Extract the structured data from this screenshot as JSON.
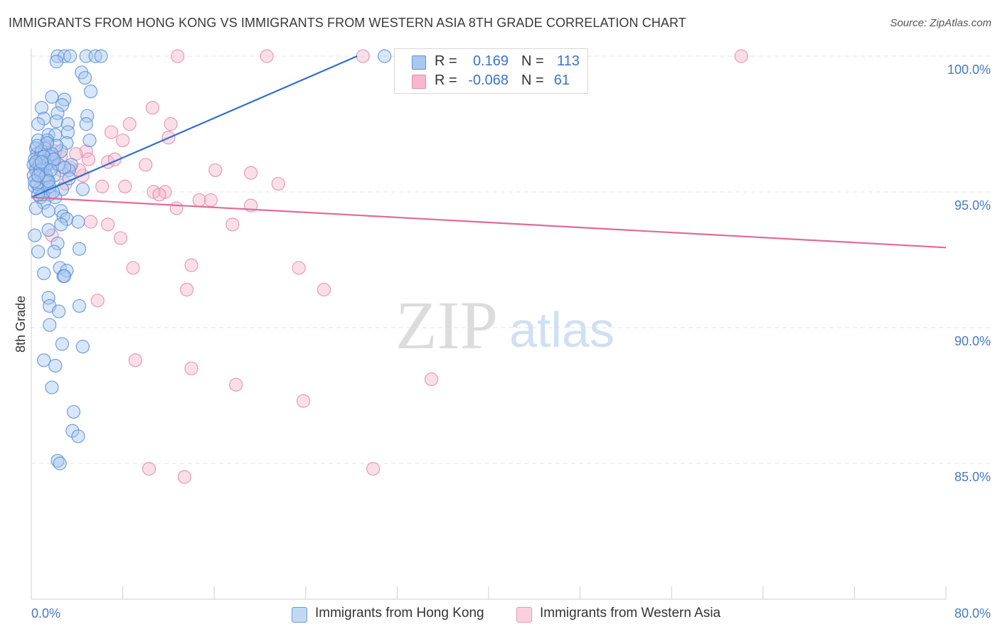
{
  "title": "IMMIGRANTS FROM HONG KONG VS IMMIGRANTS FROM WESTERN ASIA 8TH GRADE CORRELATION CHART",
  "source": "Source: ZipAtlas.com",
  "watermark": {
    "zip": "ZIP",
    "atlas": "atlas"
  },
  "legend": {
    "rows": [
      {
        "r_label": "R =",
        "r_value": "0.169",
        "n_label": "N =",
        "n_value": "113"
      },
      {
        "r_label": "R =",
        "r_value": "-0.068",
        "n_label": "N =",
        "n_value": "61"
      }
    ]
  },
  "bottom_legend": {
    "hong_kong": "Immigrants from Hong Kong",
    "western_asia": "Immigrants from Western Asia"
  },
  "colors": {
    "blue_fill": "#a9c8f0",
    "blue_stroke": "#5b8fd6",
    "blue_line": "#2f6fd0",
    "pink_fill": "#f6b9cc",
    "pink_stroke": "#e58aa8",
    "pink_line": "#e06b96",
    "axis_label": "#4a78c2"
  },
  "chart_data": {
    "type": "scatter",
    "title": "IMMIGRANTS FROM HONG KONG VS IMMIGRANTS FROM WESTERN ASIA 8TH GRADE CORRELATION CHART",
    "xlabel": "",
    "ylabel": "8th Grade",
    "xlim": [
      0,
      80
    ],
    "ylim": [
      80.5,
      100.5
    ],
    "x_tick_labels": [
      "0.0%",
      "80.0%"
    ],
    "y_ticks": [
      85,
      90,
      95,
      100
    ],
    "y_tick_labels": [
      "85.0%",
      "90.0%",
      "95.0%",
      "100.0%"
    ],
    "grid": "horizontal dashed",
    "legend_position": "top-center",
    "series": [
      {
        "name": "Immigrants from Hong Kong",
        "color": "blue",
        "trend": {
          "x": [
            0.0,
            28.5
          ],
          "y": [
            94.8,
            100.0
          ]
        },
        "points": [
          [
            2.3,
            100
          ],
          [
            2.9,
            100
          ],
          [
            3.4,
            100
          ],
          [
            4.8,
            100
          ],
          [
            5.6,
            100
          ],
          [
            6.1,
            100
          ],
          [
            2.2,
            99.8
          ],
          [
            4.4,
            99.4
          ],
          [
            4.7,
            99.2
          ],
          [
            5.2,
            98.7
          ],
          [
            1.8,
            98.5
          ],
          [
            2.9,
            98.4
          ],
          [
            0.9,
            98.1
          ],
          [
            2.7,
            98.2
          ],
          [
            2.3,
            97.9
          ],
          [
            4.9,
            97.8
          ],
          [
            1.1,
            97.7
          ],
          [
            2.2,
            97.6
          ],
          [
            0.6,
            97.5
          ],
          [
            3.2,
            97.5
          ],
          [
            4.8,
            97.5
          ],
          [
            1.5,
            97.1
          ],
          [
            2.1,
            97.1
          ],
          [
            3.2,
            97.2
          ],
          [
            0.6,
            96.9
          ],
          [
            1.4,
            96.9
          ],
          [
            3.1,
            96.8
          ],
          [
            5.1,
            96.9
          ],
          [
            0.4,
            96.6
          ],
          [
            1.2,
            96.6
          ],
          [
            2.6,
            96.5
          ],
          [
            0.5,
            96.4
          ],
          [
            1.7,
            96.3
          ],
          [
            0.3,
            96.2
          ],
          [
            1.6,
            96.1
          ],
          [
            3.5,
            96.0
          ],
          [
            0.2,
            96.0
          ],
          [
            1.0,
            95.9
          ],
          [
            3.3,
            95.8
          ],
          [
            0.4,
            95.8
          ],
          [
            2.0,
            95.6
          ],
          [
            0.2,
            95.6
          ],
          [
            1.4,
            95.4
          ],
          [
            3.3,
            95.5
          ],
          [
            0.3,
            95.2
          ],
          [
            2.7,
            95.1
          ],
          [
            0.7,
            95.1
          ],
          [
            1.6,
            94.9
          ],
          [
            4.5,
            95.1
          ],
          [
            2.1,
            94.8
          ],
          [
            0.8,
            94.8
          ],
          [
            1.1,
            94.6
          ],
          [
            0.4,
            94.4
          ],
          [
            2.6,
            94.3
          ],
          [
            1.5,
            94.3
          ],
          [
            2.8,
            94.1
          ],
          [
            3.1,
            94.0
          ],
          [
            2.6,
            93.8
          ],
          [
            1.5,
            93.6
          ],
          [
            4.1,
            93.9
          ],
          [
            0.3,
            93.4
          ],
          [
            2.3,
            93.1
          ],
          [
            2.0,
            92.8
          ],
          [
            4.2,
            92.9
          ],
          [
            0.6,
            92.8
          ],
          [
            2.5,
            92.2
          ],
          [
            3.1,
            92.1
          ],
          [
            1.1,
            92.0
          ],
          [
            2.8,
            91.9
          ],
          [
            2.9,
            91.9
          ],
          [
            1.5,
            91.1
          ],
          [
            1.6,
            90.8
          ],
          [
            2.4,
            90.6
          ],
          [
            4.2,
            90.8
          ],
          [
            1.6,
            90.1
          ],
          [
            2.7,
            89.4
          ],
          [
            4.5,
            89.3
          ],
          [
            1.1,
            88.8
          ],
          [
            2.1,
            88.6
          ],
          [
            1.8,
            87.8
          ],
          [
            3.7,
            86.9
          ],
          [
            3.6,
            86.2
          ],
          [
            4.1,
            86.0
          ],
          [
            2.3,
            85.1
          ],
          [
            2.5,
            85.0
          ],
          [
            30.9,
            100
          ],
          [
            1.9,
            96.2
          ],
          [
            0.8,
            95.7
          ],
          [
            1.3,
            96.0
          ],
          [
            0.5,
            95.3
          ],
          [
            1.0,
            94.9
          ],
          [
            2.2,
            96.7
          ],
          [
            1.2,
            95.5
          ],
          [
            0.9,
            96.5
          ],
          [
            1.6,
            95.2
          ],
          [
            2.4,
            96.0
          ],
          [
            0.7,
            96.0
          ],
          [
            1.8,
            96.4
          ],
          [
            0.3,
            95.4
          ],
          [
            1.4,
            96.8
          ],
          [
            2.9,
            95.9
          ],
          [
            0.6,
            94.9
          ],
          [
            1.1,
            96.3
          ],
          [
            0.4,
            96.1
          ],
          [
            1.9,
            95.0
          ],
          [
            0.8,
            95.8
          ],
          [
            2.0,
            96.2
          ],
          [
            1.3,
            95.6
          ],
          [
            0.5,
            96.7
          ],
          [
            1.7,
            95.8
          ],
          [
            0.9,
            96.1
          ],
          [
            1.5,
            95.4
          ],
          [
            0.6,
            95.6
          ]
        ]
      },
      {
        "name": "Immigrants from Western Asia",
        "color": "pink",
        "trend": {
          "x": [
            0.0,
            80.0
          ],
          "y": [
            94.8,
            92.95
          ]
        },
        "points": [
          [
            12.8,
            100
          ],
          [
            20.6,
            100
          ],
          [
            29.0,
            100
          ],
          [
            62.1,
            100
          ],
          [
            10.6,
            98.1
          ],
          [
            8.6,
            97.5
          ],
          [
            12.2,
            97.5
          ],
          [
            7.0,
            97.2
          ],
          [
            12.0,
            97.0
          ],
          [
            8.0,
            96.9
          ],
          [
            4.8,
            96.5
          ],
          [
            3.9,
            96.4
          ],
          [
            2.6,
            96.3
          ],
          [
            5.0,
            96.2
          ],
          [
            6.7,
            96.1
          ],
          [
            7.3,
            96.2
          ],
          [
            10.0,
            96.0
          ],
          [
            3.4,
            95.9
          ],
          [
            16.1,
            95.8
          ],
          [
            19.2,
            95.7
          ],
          [
            4.5,
            95.6
          ],
          [
            21.6,
            95.3
          ],
          [
            6.2,
            95.2
          ],
          [
            8.2,
            95.2
          ],
          [
            11.7,
            95.0
          ],
          [
            10.7,
            95.0
          ],
          [
            11.2,
            94.9
          ],
          [
            14.7,
            94.7
          ],
          [
            15.7,
            94.7
          ],
          [
            19.2,
            94.5
          ],
          [
            12.7,
            94.4
          ],
          [
            5.2,
            93.9
          ],
          [
            6.7,
            93.8
          ],
          [
            17.6,
            93.8
          ],
          [
            7.8,
            93.3
          ],
          [
            1.8,
            93.4
          ],
          [
            8.9,
            92.2
          ],
          [
            14.0,
            92.3
          ],
          [
            23.4,
            92.2
          ],
          [
            13.6,
            91.4
          ],
          [
            25.6,
            91.4
          ],
          [
            5.8,
            91.0
          ],
          [
            9.1,
            88.8
          ],
          [
            14.0,
            88.5
          ],
          [
            17.9,
            87.9
          ],
          [
            35.0,
            88.1
          ],
          [
            23.8,
            87.3
          ],
          [
            10.3,
            84.8
          ],
          [
            13.4,
            84.5
          ],
          [
            29.9,
            84.8
          ],
          [
            1.0,
            95.6
          ],
          [
            0.6,
            96.2
          ],
          [
            1.4,
            95.5
          ],
          [
            2.1,
            96.5
          ],
          [
            0.4,
            95.9
          ],
          [
            1.8,
            96.1
          ],
          [
            0.8,
            96.4
          ],
          [
            2.6,
            95.8
          ],
          [
            1.2,
            96.7
          ],
          [
            4.2,
            95.8
          ],
          [
            3.0,
            95.3
          ]
        ]
      }
    ]
  }
}
